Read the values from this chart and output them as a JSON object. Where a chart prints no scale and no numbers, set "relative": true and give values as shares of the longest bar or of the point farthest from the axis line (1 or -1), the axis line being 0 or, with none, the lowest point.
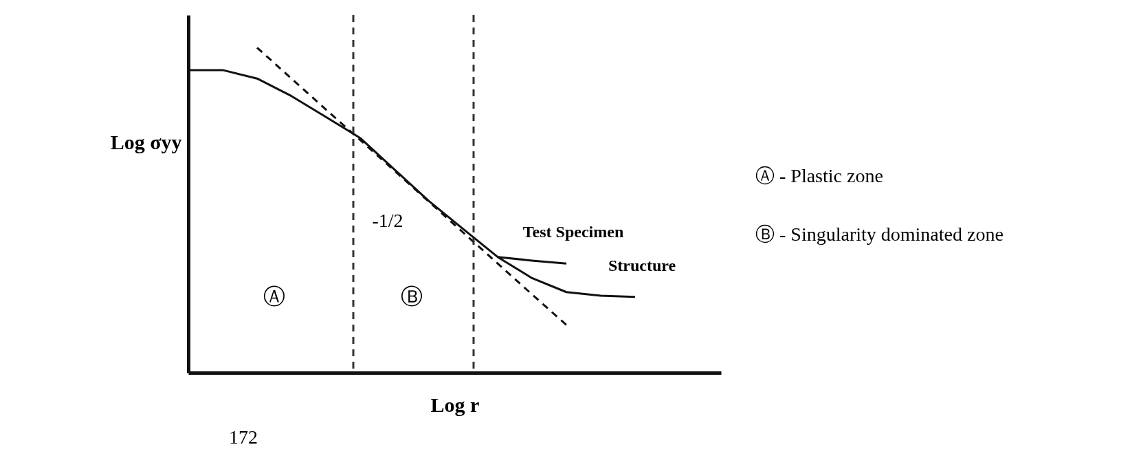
{
  "chart_data": {
    "type": "line",
    "relative": true,
    "xlabel": "Log r",
    "ylabel": "Log σyy",
    "categories": [
      null,
      null,
      null,
      null,
      null,
      null,
      null,
      null,
      null,
      null,
      null,
      null,
      null,
      null,
      null,
      null
    ],
    "grid": false,
    "legend": false,
    "marker": "none",
    "series": [
      {
        "name": "Structure",
        "color": "#111111",
        "line_style": "solid",
        "values": [
          0.931,
          0.931,
          0.905,
          0.851,
          0.787,
          0.722,
          0.625,
          0.528,
          0.442,
          0.356,
          0.291,
          0.248,
          0.237,
          0.233,
          null,
          null
        ]
      },
      {
        "name": "Test Specimen",
        "color": "#111111",
        "line_style": "solid",
        "values": [
          null,
          null,
          null,
          null,
          null,
          null,
          null,
          null,
          null,
          0.356,
          0.345,
          0.336,
          null,
          null,
          null,
          null
        ]
      },
      {
        "color": "#111111",
        "line_style": "dashed",
        "values": [
          null,
          null,
          1,
          0.905,
          0.81,
          0.716,
          0.621,
          0.526,
          0.431,
          0.336,
          0.241,
          0.147,
          null,
          null,
          null,
          null
        ]
      }
    ],
    "annotations": [
      "Ⓐ",
      "Ⓑ",
      "-1/2",
      "Ⓐ - Plastic zone",
      "Ⓑ - Singularity dominated zone",
      "172"
    ]
  }
}
